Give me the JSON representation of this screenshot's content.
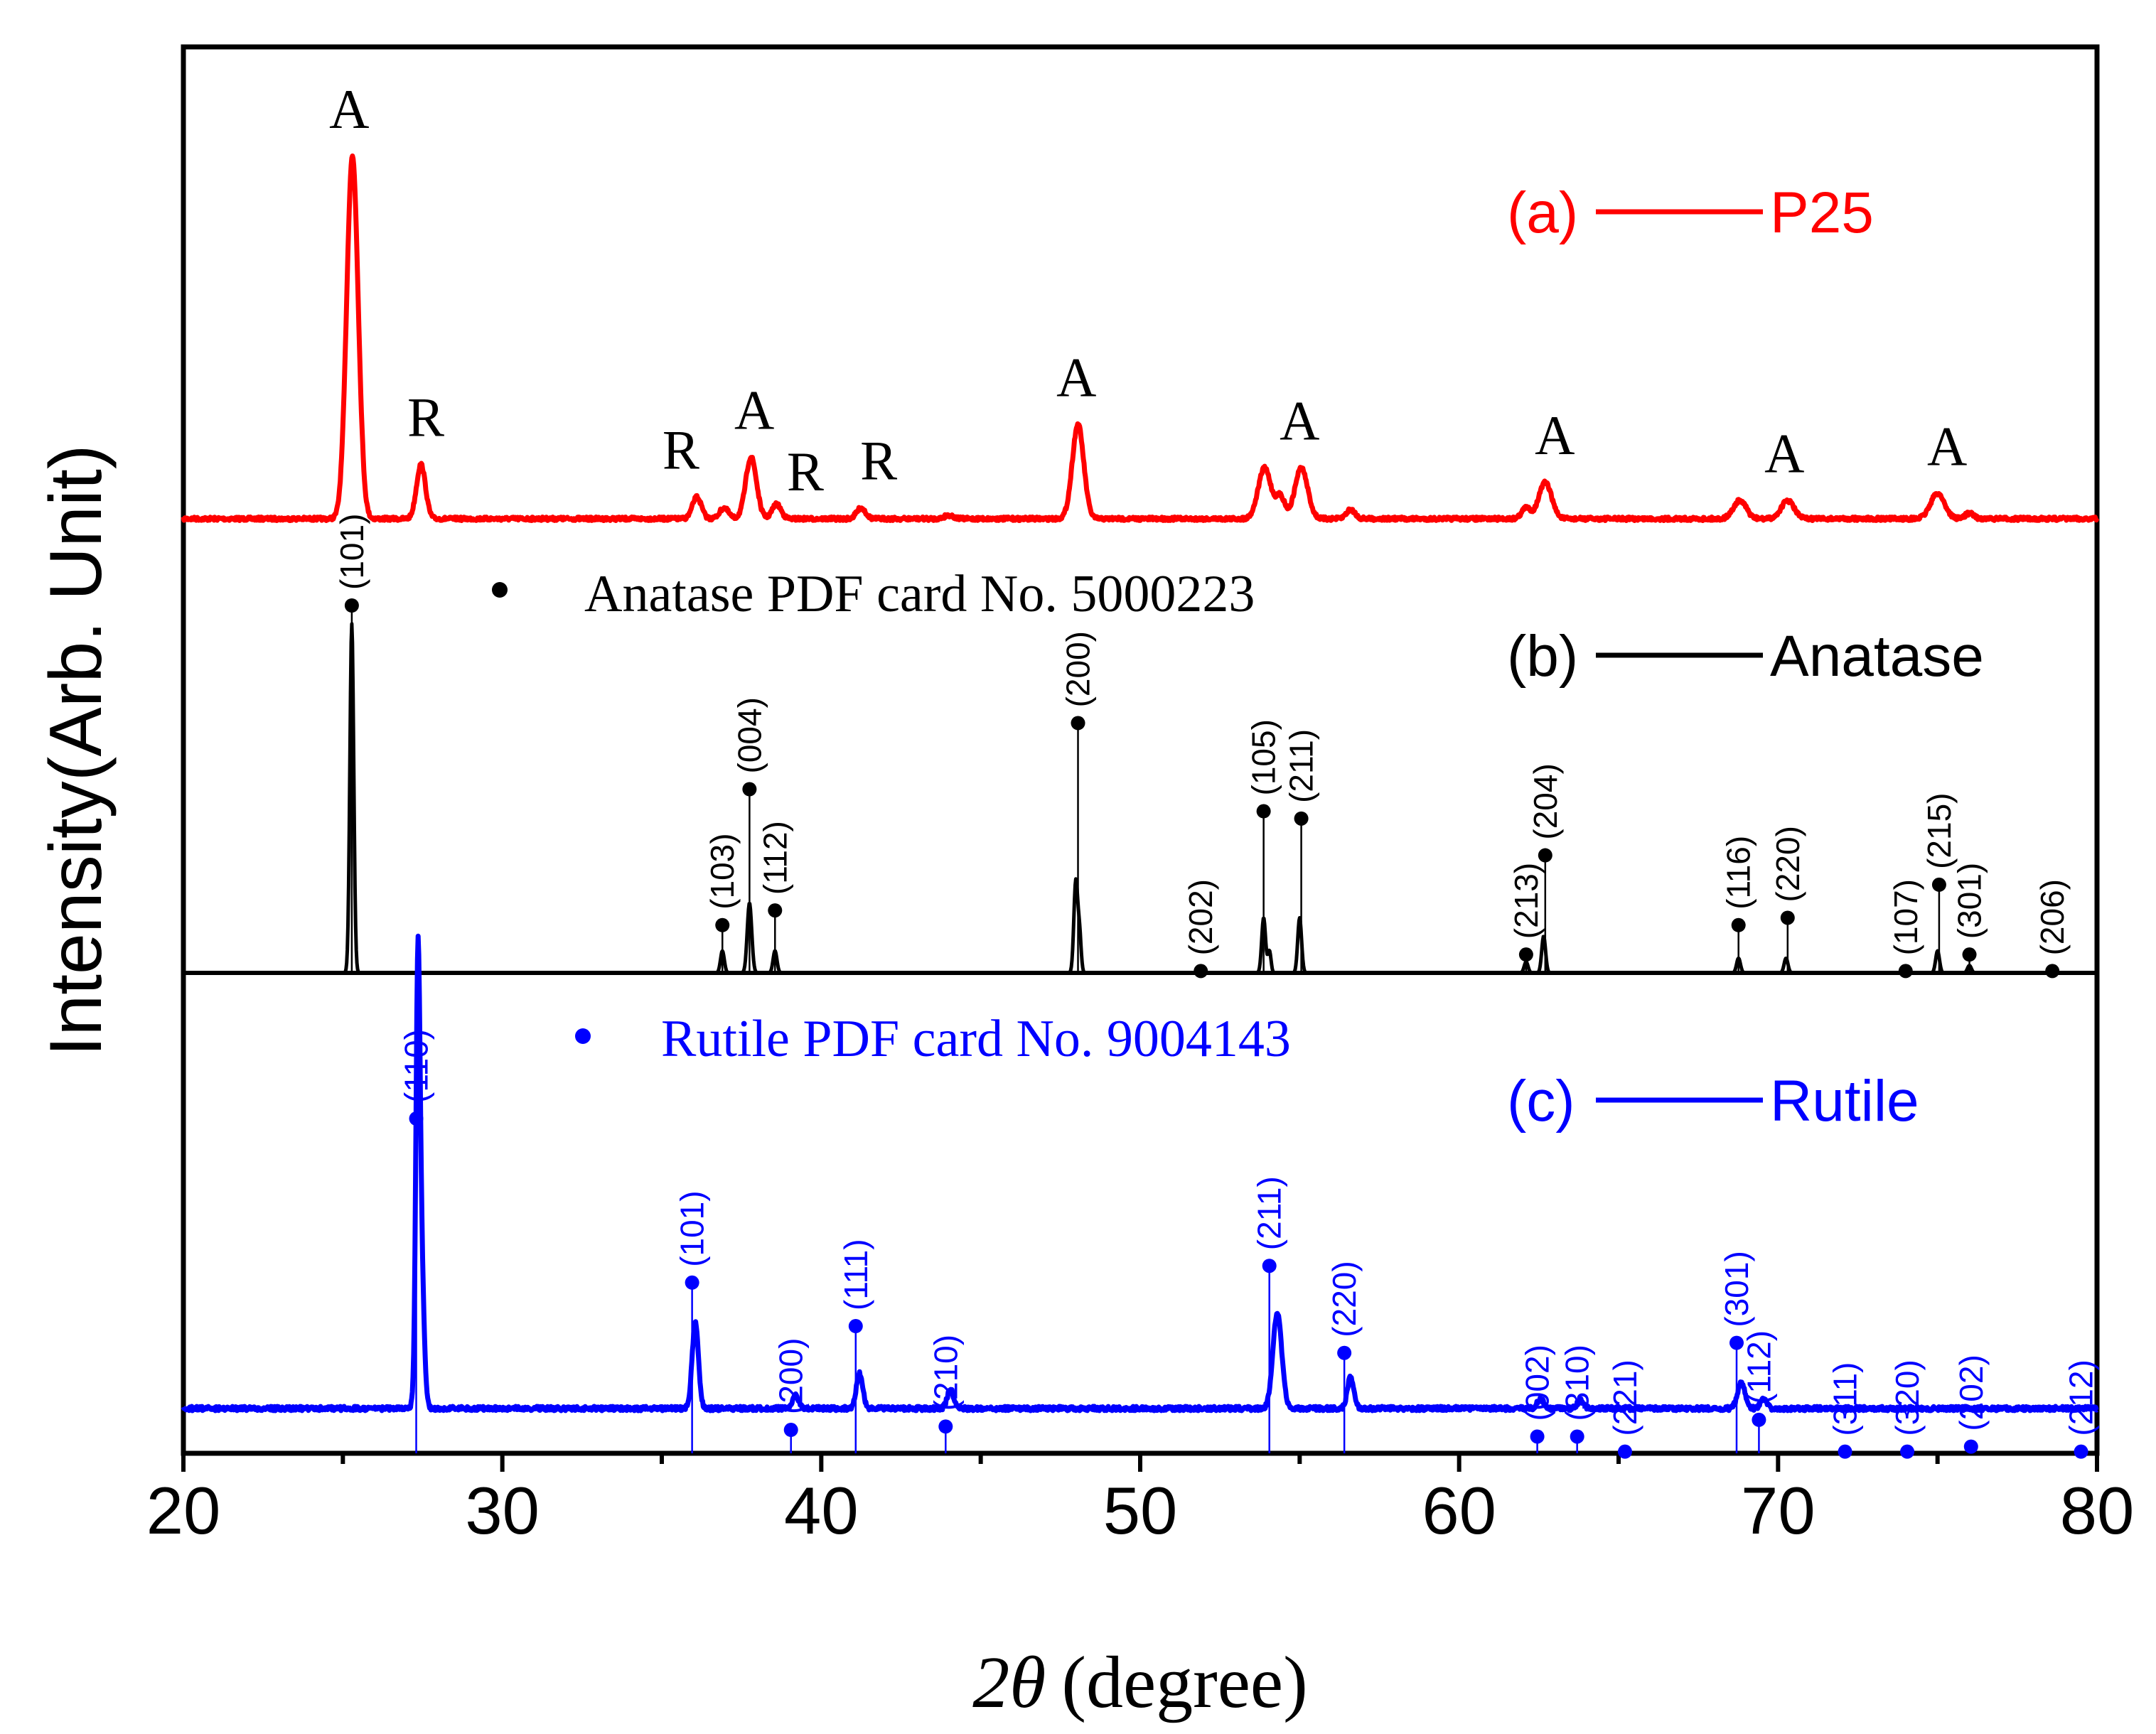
{
  "chart_data": {
    "type": "line",
    "x_range": [
      20,
      80
    ],
    "xlabel_symbol": "2θ",
    "xlabel_unit": "(degree)",
    "ylabel": "Intensity(Arb. Unit)",
    "x_ticks": [
      "20",
      "30",
      "40",
      "50",
      "60",
      "70",
      "80"
    ],
    "colors": {
      "p25": "#ff0000",
      "anatase": "#000000",
      "rutile": "#0000ff"
    },
    "legends": [
      {
        "id": "a",
        "marker": "(a)",
        "name": "P25",
        "color": "#ff0000"
      },
      {
        "id": "b",
        "marker": "(b)",
        "name": "Anatase",
        "color": "#000000"
      },
      {
        "id": "c",
        "marker": "(c)",
        "name": "Rutile",
        "color": "#0000ff"
      }
    ],
    "card_labels": {
      "anatase": "Anatase PDF card No. 5000223",
      "rutile": "Rutile PDF card No. 9004143"
    },
    "p25": {
      "name": "P25",
      "peaks": [
        {
          "x": 25.3,
          "h": 1.0,
          "w": 0.18
        },
        {
          "x": 27.45,
          "h": 0.15,
          "w": 0.14
        },
        {
          "x": 36.1,
          "h": 0.06,
          "w": 0.14
        },
        {
          "x": 36.95,
          "h": 0.03,
          "w": 0.14
        },
        {
          "x": 37.8,
          "h": 0.17,
          "w": 0.17
        },
        {
          "x": 38.6,
          "h": 0.04,
          "w": 0.14
        },
        {
          "x": 41.25,
          "h": 0.03,
          "w": 0.14
        },
        {
          "x": 44.0,
          "h": 0.01,
          "w": 0.14
        },
        {
          "x": 48.05,
          "h": 0.26,
          "w": 0.18
        },
        {
          "x": 53.9,
          "h": 0.14,
          "w": 0.2
        },
        {
          "x": 54.4,
          "h": 0.06,
          "w": 0.14
        },
        {
          "x": 55.05,
          "h": 0.14,
          "w": 0.2
        },
        {
          "x": 56.6,
          "h": 0.025,
          "w": 0.14
        },
        {
          "x": 62.1,
          "h": 0.03,
          "w": 0.14
        },
        {
          "x": 62.7,
          "h": 0.1,
          "w": 0.2
        },
        {
          "x": 68.8,
          "h": 0.05,
          "w": 0.2
        },
        {
          "x": 70.3,
          "h": 0.05,
          "w": 0.2
        },
        {
          "x": 75.0,
          "h": 0.07,
          "w": 0.22
        },
        {
          "x": 76.0,
          "h": 0.015,
          "w": 0.14
        }
      ],
      "annotations": [
        {
          "x": 25.2,
          "text": "A"
        },
        {
          "x": 27.6,
          "text": "R"
        },
        {
          "x": 35.6,
          "text": "R"
        },
        {
          "x": 37.9,
          "text": "A"
        },
        {
          "x": 39.5,
          "text": "R"
        },
        {
          "x": 41.8,
          "text": "R"
        },
        {
          "x": 48.0,
          "text": "A"
        },
        {
          "x": 55.0,
          "text": "A"
        },
        {
          "x": 63.0,
          "text": "A"
        },
        {
          "x": 70.2,
          "text": "A"
        },
        {
          "x": 75.3,
          "text": "A"
        }
      ]
    },
    "anatase": {
      "name": "Anatase",
      "reference": [
        {
          "x": 25.28,
          "i": 100,
          "hkl": "(101)"
        },
        {
          "x": 36.9,
          "i": 13,
          "hkl": "(103)"
        },
        {
          "x": 37.75,
          "i": 50,
          "hkl": "(004)"
        },
        {
          "x": 38.55,
          "i": 17,
          "hkl": "(112)"
        },
        {
          "x": 48.05,
          "i": 68,
          "hkl": "(200)"
        },
        {
          "x": 51.9,
          "i": 0.5,
          "hkl": "(202)"
        },
        {
          "x": 53.87,
          "i": 44,
          "hkl": "(105)"
        },
        {
          "x": 55.05,
          "i": 42,
          "hkl": "(211)"
        },
        {
          "x": 62.1,
          "i": 5,
          "hkl": "(213)"
        },
        {
          "x": 62.7,
          "i": 32,
          "hkl": "(204)"
        },
        {
          "x": 68.76,
          "i": 13,
          "hkl": "(116)"
        },
        {
          "x": 70.3,
          "i": 15,
          "hkl": "(220)"
        },
        {
          "x": 74.0,
          "i": 0.5,
          "hkl": "(107)"
        },
        {
          "x": 75.05,
          "i": 24,
          "hkl": "(215)"
        },
        {
          "x": 76.0,
          "i": 5,
          "hkl": "(301)"
        },
        {
          "x": 78.6,
          "i": 0.5,
          "hkl": "(206)"
        }
      ],
      "peaks": [
        {
          "x": 25.28,
          "h": 95,
          "w": 0.06
        },
        {
          "x": 36.9,
          "h": 6,
          "w": 0.06
        },
        {
          "x": 37.75,
          "h": 19,
          "w": 0.07
        },
        {
          "x": 38.55,
          "h": 6,
          "w": 0.06
        },
        {
          "x": 47.98,
          "h": 25,
          "w": 0.06
        },
        {
          "x": 48.1,
          "h": 10,
          "w": 0.05
        },
        {
          "x": 53.87,
          "h": 15,
          "w": 0.06
        },
        {
          "x": 54.05,
          "h": 6,
          "w": 0.05
        },
        {
          "x": 55.0,
          "h": 15,
          "w": 0.06
        },
        {
          "x": 62.1,
          "h": 3,
          "w": 0.06
        },
        {
          "x": 62.65,
          "h": 10,
          "w": 0.06
        },
        {
          "x": 68.76,
          "h": 4,
          "w": 0.06
        },
        {
          "x": 70.25,
          "h": 4,
          "w": 0.06
        },
        {
          "x": 75.0,
          "h": 6,
          "w": 0.06
        },
        {
          "x": 76.0,
          "h": 2,
          "w": 0.06
        }
      ]
    },
    "rutile": {
      "name": "Rutile",
      "reference": [
        {
          "x": 27.3,
          "i": 100,
          "hkl": "(110)"
        },
        {
          "x": 35.95,
          "i": 51,
          "hkl": "(101)"
        },
        {
          "x": 39.05,
          "i": 7,
          "hkl": "(200)"
        },
        {
          "x": 41.08,
          "i": 38,
          "hkl": "(111)"
        },
        {
          "x": 43.9,
          "i": 8,
          "hkl": "(210)"
        },
        {
          "x": 54.05,
          "i": 56,
          "hkl": "(211)"
        },
        {
          "x": 56.4,
          "i": 30,
          "hkl": "(220)"
        },
        {
          "x": 62.45,
          "i": 5,
          "hkl": "(002)"
        },
        {
          "x": 63.7,
          "i": 5,
          "hkl": "(310)"
        },
        {
          "x": 65.2,
          "i": 0.5,
          "hkl": "(221)"
        },
        {
          "x": 68.7,
          "i": 33,
          "hkl": "(301)"
        },
        {
          "x": 69.4,
          "i": 10,
          "hkl": "(112)"
        },
        {
          "x": 72.1,
          "i": 0.5,
          "hkl": "(311)"
        },
        {
          "x": 74.05,
          "i": 0.5,
          "hkl": "(320)"
        },
        {
          "x": 76.05,
          "i": 2,
          "hkl": "(202)"
        },
        {
          "x": 79.5,
          "i": 0.5,
          "hkl": "(212)"
        }
      ],
      "peaks": [
        {
          "x": 27.35,
          "h": 100,
          "w": 0.06
        },
        {
          "x": 27.42,
          "h": 60,
          "w": 0.1
        },
        {
          "x": 36.05,
          "h": 27,
          "w": 0.1
        },
        {
          "x": 39.2,
          "h": 4,
          "w": 0.1
        },
        {
          "x": 41.2,
          "h": 11,
          "w": 0.1
        },
        {
          "x": 44.05,
          "h": 6,
          "w": 0.1
        },
        {
          "x": 54.3,
          "h": 30,
          "w": 0.14
        },
        {
          "x": 56.6,
          "h": 10,
          "w": 0.1
        },
        {
          "x": 62.55,
          "h": 3,
          "w": 0.1
        },
        {
          "x": 63.8,
          "h": 2.5,
          "w": 0.1
        },
        {
          "x": 68.85,
          "h": 8,
          "w": 0.12
        },
        {
          "x": 69.55,
          "h": 3,
          "w": 0.1
        }
      ]
    }
  }
}
